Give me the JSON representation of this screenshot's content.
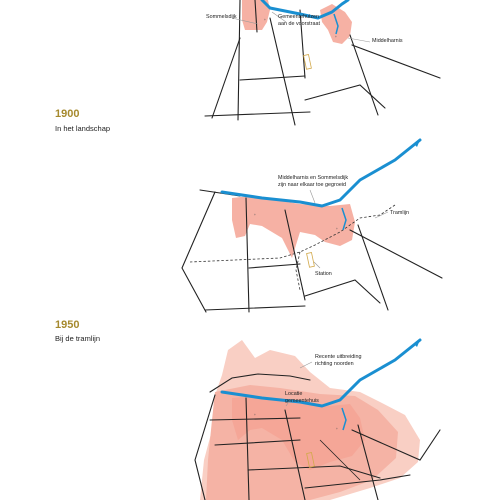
{
  "panel1": {
    "year": "1900",
    "subtitle": "In het landschap",
    "labels": {
      "sommelsdijk": "Sommelsdijk",
      "gemeentehuizen_1": "Gemeentehuizen",
      "gemeentehuizen_2": "aan de voorstraat",
      "middelharnis": "Middelharnis"
    }
  },
  "panel2": {
    "year": "1950",
    "subtitle": "Bij de tramlijn",
    "labels": {
      "grown_1": "Middelharnis en Sommelsdijk",
      "grown_2": "zijn naar elkaar toe gegroeid",
      "tramlijn": "Tramlijn",
      "station": "Station"
    }
  },
  "panel3": {
    "labels": {
      "recent_1": "Recente uitbreiding",
      "recent_2": "richting noorden",
      "locatie_1": "Locatie",
      "locatie_2": "gemeentehuis"
    }
  },
  "colors": {
    "water": "#1a8fd1",
    "urban": "#f4a394",
    "urban_light": "#f9cfc4",
    "year_gold": "#a68a2e"
  }
}
